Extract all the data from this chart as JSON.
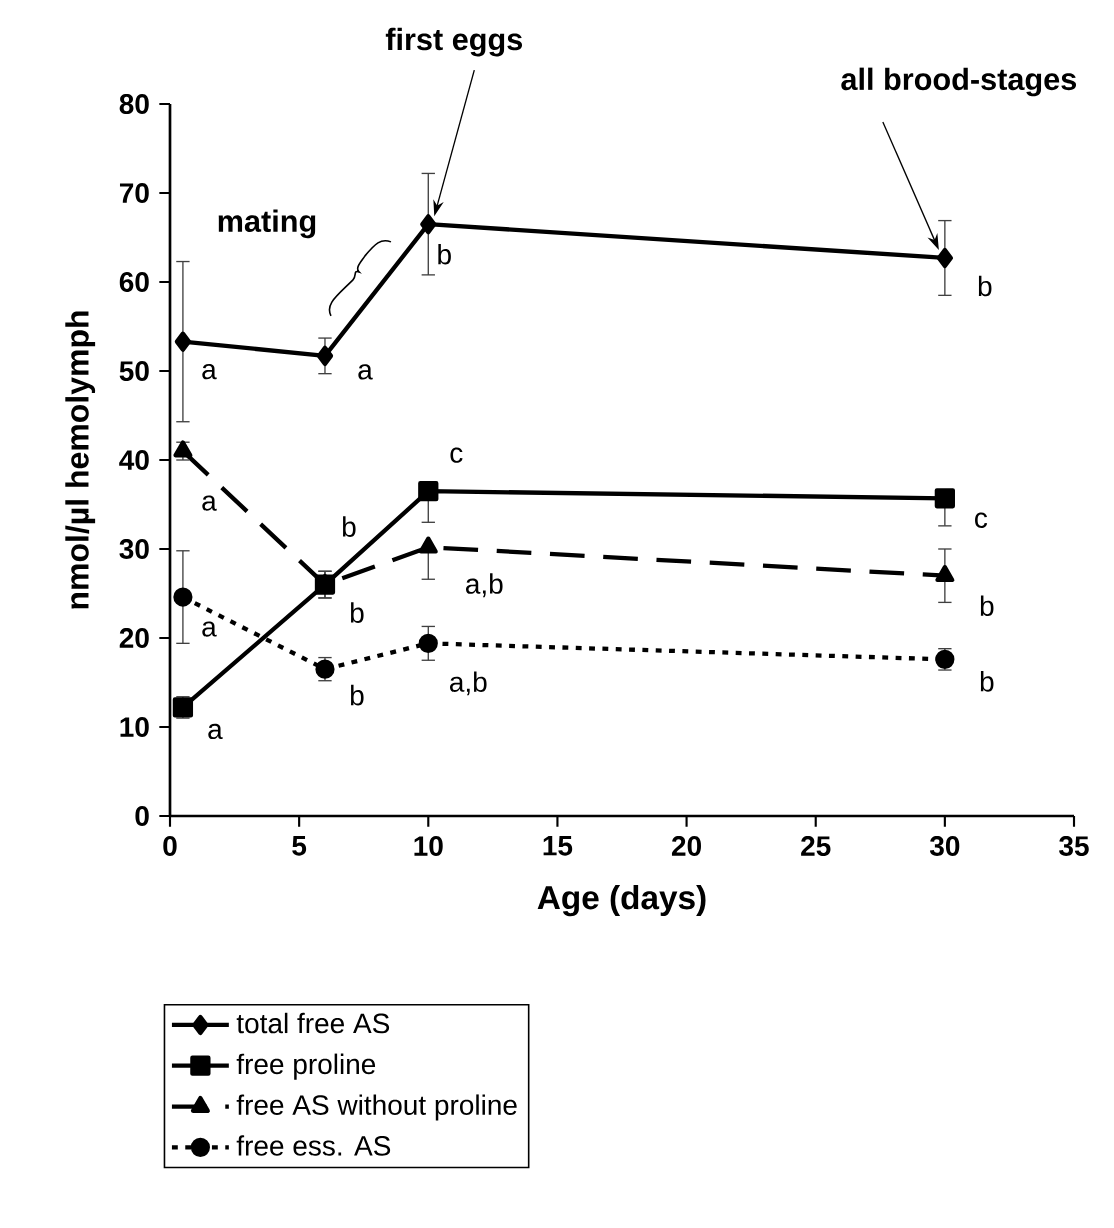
{
  "chart_data": {
    "type": "line",
    "xlabel": "Age (days)",
    "ylabel": "nmol/µl hemolymph",
    "x": [
      0.5,
      6,
      10,
      30
    ],
    "series": [
      {
        "name": "total free AS",
        "color": "#000000",
        "values": [
          53.3,
          51.7,
          66.5,
          62.7
        ],
        "errors": [
          9,
          2,
          5.7,
          4.2
        ],
        "marker": "diamond",
        "line_style": "solid"
      },
      {
        "name": "free proline",
        "color": "#000000",
        "values": [
          12.2,
          26,
          36.5,
          35.7
        ],
        "errors": [
          1.2,
          1.5,
          [
            33,
            36.5
          ],
          [
            32.6,
            35.7
          ]
        ],
        "marker": "square",
        "line_style": "solid"
      },
      {
        "name": "free AS without proline",
        "color": "#000000",
        "values": [
          41,
          26,
          30.2,
          27
        ],
        "errors": [
          1,
          1.5,
          [
            26.6,
            30.2
          ],
          3
        ],
        "marker": "triangle",
        "line_style": "dashed"
      },
      {
        "name": "free ess. AS",
        "color": "#000000",
        "values": [
          24.6,
          16.5,
          19.4,
          17.6
        ],
        "errors": [
          5.2,
          1.3,
          1.9,
          1.2
        ],
        "marker": "circle",
        "line_style": "dotted"
      }
    ],
    "xlim": [
      0,
      35
    ],
    "xticks": [
      0,
      5,
      10,
      15,
      20,
      25,
      30,
      35
    ],
    "ylim": [
      0,
      80
    ],
    "yticks": [
      0,
      10,
      20,
      30,
      40,
      50,
      60,
      70,
      80
    ],
    "legend": "bottom",
    "annotations": [
      "mating",
      "first eggs",
      "all brood-stages",
      {
        "text": "a",
        "x": 0.5,
        "y": 53.3
      },
      {
        "text": "a",
        "x": 6,
        "y": 51.7
      },
      {
        "text": "b",
        "x": 10,
        "y": 66.5
      },
      {
        "text": "b",
        "x": 30,
        "y": 62.7
      },
      {
        "text": "a",
        "x": 0.5,
        "y": 12.2
      },
      {
        "text": "b",
        "x": 6,
        "y": 26
      },
      {
        "text": "c",
        "x": 10,
        "y": 36.5
      },
      {
        "text": "c",
        "x": 30,
        "y": 35.7
      },
      {
        "text": "a",
        "x": 0.5,
        "y": 41
      },
      {
        "text": "b",
        "x": 6,
        "y": 26
      },
      {
        "text": "a,b",
        "x": 10,
        "y": 30.2
      },
      {
        "text": "b",
        "x": 30,
        "y": 27
      },
      {
        "text": "a",
        "x": 0.5,
        "y": 24.6
      },
      {
        "text": "b",
        "x": 6,
        "y": 16.5
      },
      {
        "text": "a,b",
        "x": 10,
        "y": 19.4
      },
      {
        "text": "b",
        "x": 30,
        "y": 17.6
      }
    ]
  }
}
